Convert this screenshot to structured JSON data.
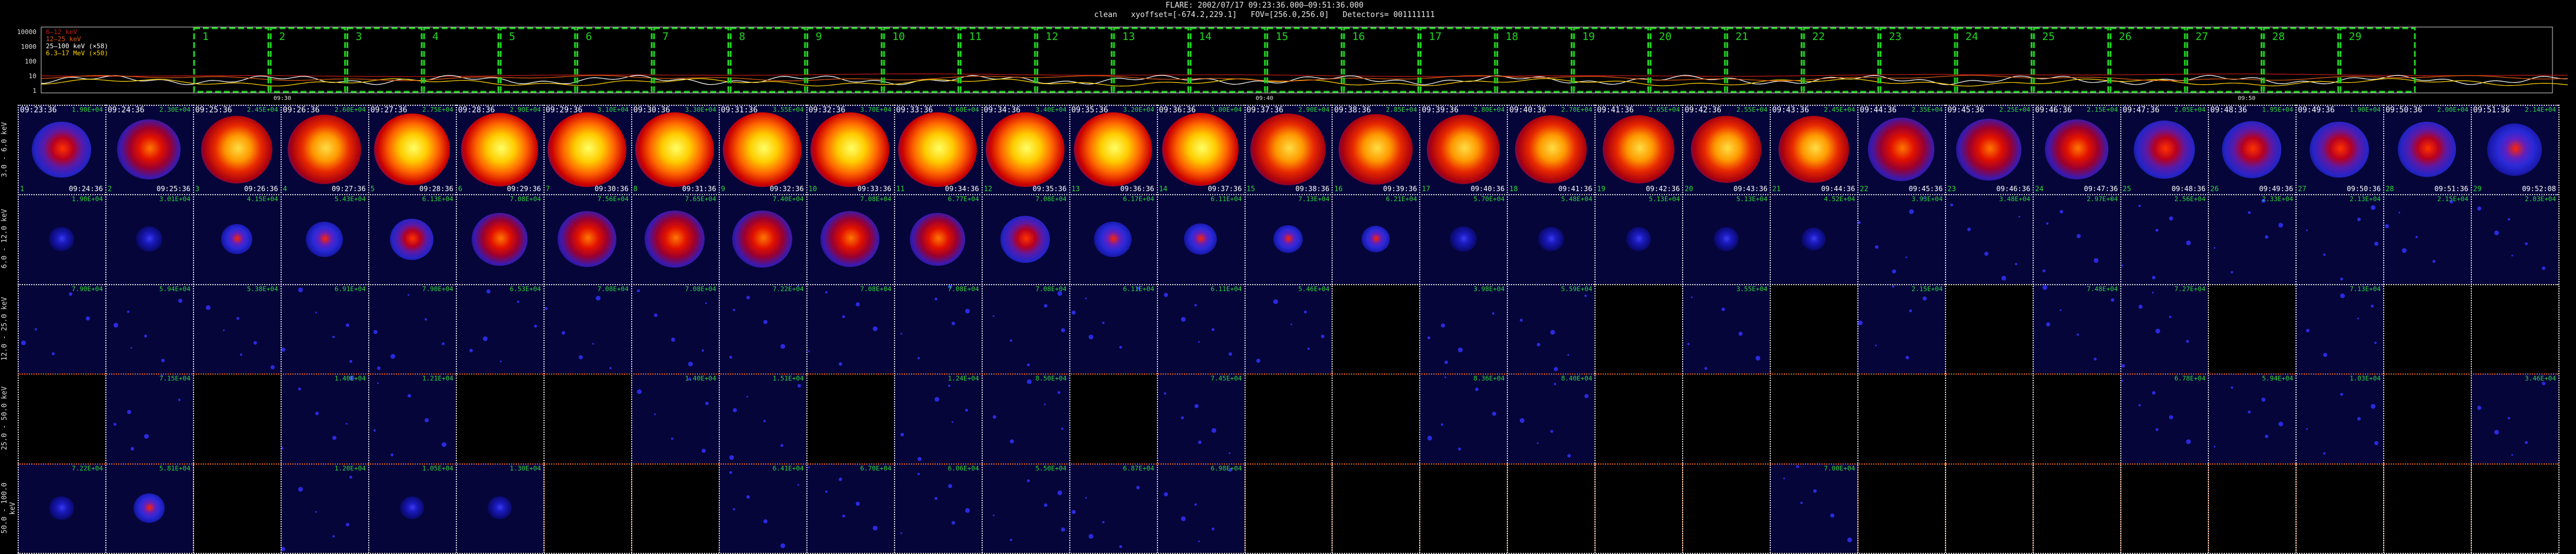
{
  "header": {
    "title": "FLARE: 2002/07/17 09:23:36.000–09:51:36.000",
    "params": "clean   xyoffset=[-674.2,229.1]   FOV=[256.0,256.0]   Detectors= 001111111"
  },
  "lightcurve": {
    "legend": [
      "6–12 keV",
      "12–25 keV",
      "25–100 keV (×58)",
      "6.3–17 MeV (×50)"
    ],
    "legend_colors": [
      "#c41919",
      "#e05a12",
      "#ffffff",
      "#ffd400"
    ],
    "yticks": [
      "10000",
      "1000",
      "100",
      "10",
      "1"
    ],
    "xticks": [
      "09:30",
      "09:40",
      "09:50"
    ],
    "intervals": [
      "1",
      "2",
      "3",
      "4",
      "5",
      "6",
      "7",
      "8",
      "9",
      "10",
      "11",
      "12",
      "13",
      "14",
      "15",
      "16",
      "17",
      "18",
      "19",
      "20",
      "21",
      "22",
      "23",
      "24",
      "25",
      "26",
      "27",
      "28",
      "29"
    ]
  },
  "energy_bands": [
    "3.0 - 6.0 keV",
    "6.0 - 12.0 keV",
    "12.0 - 25.0 keV",
    "25.0 - 50.0 keV",
    "50.0 - 100.0 keV"
  ],
  "columns": {
    "start": [
      "09:23:36",
      "09:24:36",
      "09:25:36",
      "09:26:36",
      "09:27:36",
      "09:28:36",
      "09:29:36",
      "09:30:36",
      "09:31:36",
      "09:32:36",
      "09:33:36",
      "09:34:36",
      "09:35:36",
      "09:36:36",
      "09:37:36",
      "09:38:36",
      "09:39:36",
      "09:40:36",
      "09:41:36",
      "09:42:36",
      "09:43:36",
      "09:44:36",
      "09:45:36",
      "09:46:36",
      "09:47:36",
      "09:48:36",
      "09:49:36",
      "09:50:36",
      "09:51:36"
    ],
    "end": [
      "09:24:36",
      "09:25:36",
      "09:26:36",
      "09:27:36",
      "09:28:36",
      "09:29:36",
      "09:30:36",
      "09:31:36",
      "09:32:36",
      "09:33:36",
      "09:34:36",
      "09:35:36",
      "09:36:36",
      "09:37:36",
      "09:38:36",
      "09:39:36",
      "09:40:36",
      "09:41:36",
      "09:42:36",
      "09:43:36",
      "09:44:36",
      "09:45:36",
      "09:46:36",
      "09:47:36",
      "09:48:36",
      "09:49:36",
      "09:50:36",
      "09:51:36",
      "09:52:08"
    ],
    "index": [
      "1",
      "2",
      "3",
      "4",
      "5",
      "6",
      "7",
      "8",
      "9",
      "10",
      "11",
      "12",
      "13",
      "14",
      "15",
      "16",
      "17",
      "18",
      "19",
      "20",
      "21",
      "22",
      "23",
      "24",
      "25",
      "26",
      "27",
      "28",
      "29"
    ]
  },
  "rows": [
    {
      "max": [
        "1.90E+04",
        "2.30E+04",
        "2.45E+04",
        "2.60E+04",
        "2.75E+04",
        "2.90E+04",
        "3.10E+04",
        "3.30E+04",
        "3.55E+04",
        "3.70E+04",
        "3.60E+04",
        "3.40E+04",
        "3.20E+04",
        "3.00E+04",
        "2.90E+04",
        "2.85E+04",
        "2.80E+04",
        "2.70E+04",
        "2.65E+04",
        "2.55E+04",
        "2.45E+04",
        "2.35E+04",
        "2.25E+04",
        "2.15E+04",
        "2.05E+04",
        "1.95E+04",
        "1.90E+04",
        "2.00E+04",
        "2.14E+04"
      ],
      "level": [
        0.35,
        0.5,
        0.75,
        0.82,
        0.9,
        0.95,
        1.0,
        1.0,
        1.0,
        1.0,
        1.0,
        1.0,
        0.98,
        0.92,
        0.88,
        0.84,
        0.8,
        0.78,
        0.76,
        0.74,
        0.72,
        0.6,
        0.55,
        0.5,
        0.42,
        0.38,
        0.35,
        0.32,
        0.22
      ]
    },
    {
      "max": [
        "1.90E+04",
        "3.01E+04",
        "4.15E+04",
        "5.43E+04",
        "6.13E+04",
        "7.08E+04",
        "7.56E+04",
        "7.65E+04",
        "7.40E+04",
        "7.08E+04",
        "6.77E+04",
        "7.08E+04",
        "6.17E+04",
        "6.11E+04",
        "7.13E+04",
        "6.21E+04",
        "5.70E+04",
        "5.48E+04",
        "5.13E+04",
        "5.13E+04",
        "4.52E+04",
        "3.93E+04",
        "3.48E+04",
        "2.97E+04",
        "2.56E+04",
        "2.33E+04",
        "2.13E+04",
        "2.15E+04",
        "2.03E+04"
      ],
      "level": [
        0.05,
        0.08,
        0.15,
        0.25,
        0.35,
        0.55,
        0.6,
        0.62,
        0.62,
        0.6,
        0.55,
        0.45,
        0.25,
        0.18,
        0.12,
        0.1,
        0.08,
        0.06,
        0.05,
        0.05,
        0.04,
        0.03,
        0.02,
        0.02,
        0.02,
        0.01,
        0.01,
        0.01,
        0.01
      ]
    },
    {
      "max": [
        "7.90E+04",
        "5.94E+04",
        "5.38E+04",
        "6.91E+04",
        "7.90E+04",
        "6.53E+04",
        "7.08E+04",
        "7.08E+04",
        "7.22E+04",
        "7.08E+04",
        "7.08E+04",
        "7.08E+04",
        "6.11E+04",
        "6.11E+04",
        "5.46E+04",
        "",
        "3.98E+04",
        "5.59E+04",
        "",
        "3.55E+04",
        "",
        "2.15E+04",
        "",
        "7.48E+04",
        "7.27E+04",
        "",
        "7.13E+04",
        "",
        ""
      ],
      "level": [
        0.02,
        0.02,
        0.02,
        0.02,
        0.02,
        0.02,
        0.02,
        0.02,
        0.02,
        0.02,
        0.02,
        0.02,
        0.02,
        0.02,
        0.02,
        0.0,
        0.02,
        0.02,
        0.0,
        0.02,
        0.0,
        0.02,
        0.0,
        0.02,
        0.02,
        0.0,
        0.02,
        0.0,
        0.0
      ]
    },
    {
      "max": [
        "",
        "7.15E+04",
        "",
        "1.40E+04",
        "1.21E+04",
        "",
        "",
        "1.40E+04",
        "1.51E+04",
        "",
        "1.24E+04",
        "8.50E+04",
        "",
        "7.45E+04",
        "",
        "",
        "8.36E+04",
        "8.40E+04",
        "",
        "",
        "",
        "",
        "",
        "",
        "6.78E+04",
        "5.94E+04",
        "1.03E+04",
        "",
        "3.46E+04"
      ],
      "level": [
        0.0,
        0.02,
        0.0,
        0.02,
        0.02,
        0.0,
        0.0,
        0.02,
        0.02,
        0.0,
        0.02,
        0.02,
        0.0,
        0.02,
        0.0,
        0.0,
        0.02,
        0.02,
        0.0,
        0.0,
        0.0,
        0.0,
        0.0,
        0.0,
        0.02,
        0.02,
        0.02,
        0.0,
        0.02
      ]
    },
    {
      "max": [
        "7.22E+04",
        "5.81E+04",
        "",
        "1.20E+04",
        "1.05E+04",
        "1.30E+04",
        "",
        "",
        "6.41E+04",
        "6.70E+04",
        "6.06E+04",
        "5.50E+04",
        "6.87E+04",
        "6.98E+04",
        "",
        "",
        "",
        "",
        "",
        "",
        "7.00E+04",
        "",
        "",
        "",
        "",
        "",
        "",
        "",
        ""
      ],
      "level": [
        0.05,
        0.15,
        0.0,
        0.03,
        0.04,
        0.04,
        0.0,
        0.0,
        0.02,
        0.02,
        0.02,
        0.02,
        0.02,
        0.02,
        0.0,
        0.0,
        0.0,
        0.0,
        0.0,
        0.0,
        0.03,
        0.0,
        0.0,
        0.0,
        0.0,
        0.0,
        0.0,
        0.0,
        0.0
      ]
    }
  ]
}
